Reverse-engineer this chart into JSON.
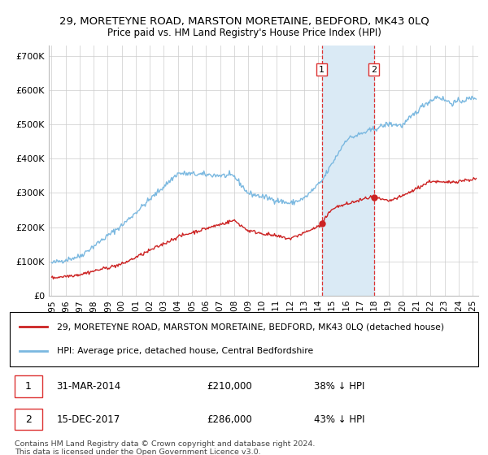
{
  "title": "29, MORETEYNE ROAD, MARSTON MORETAINE, BEDFORD, MK43 0LQ",
  "subtitle": "Price paid vs. HM Land Registry's House Price Index (HPI)",
  "ylim": [
    0,
    730000
  ],
  "yticks": [
    0,
    100000,
    200000,
    300000,
    400000,
    500000,
    600000,
    700000
  ],
  "ytick_labels": [
    "£0",
    "£100K",
    "£200K",
    "£300K",
    "£400K",
    "£500K",
    "£600K",
    "£700K"
  ],
  "hpi_color": "#7ab8e0",
  "price_color": "#cc2222",
  "shaded_color": "#daeaf5",
  "vline_color": "#dd3333",
  "legend_label_red": "29, MORETEYNE ROAD, MARSTON MORETAINE, BEDFORD, MK43 0LQ (detached house)",
  "legend_label_blue": "HPI: Average price, detached house, Central Bedfordshire",
  "sale1_date": 2014.25,
  "sale1_price": 210000,
  "sale2_date": 2017.96,
  "sale2_price": 286000,
  "footer": "Contains HM Land Registry data © Crown copyright and database right 2024.\nThis data is licensed under the Open Government Licence v3.0.",
  "xlim_start": 1994.8,
  "xlim_end": 2025.4,
  "xticks": [
    1995,
    1996,
    1997,
    1998,
    1999,
    2000,
    2001,
    2002,
    2003,
    2004,
    2005,
    2006,
    2007,
    2008,
    2009,
    2010,
    2011,
    2012,
    2013,
    2014,
    2015,
    2016,
    2017,
    2018,
    2019,
    2020,
    2021,
    2022,
    2023,
    2024,
    2025
  ]
}
